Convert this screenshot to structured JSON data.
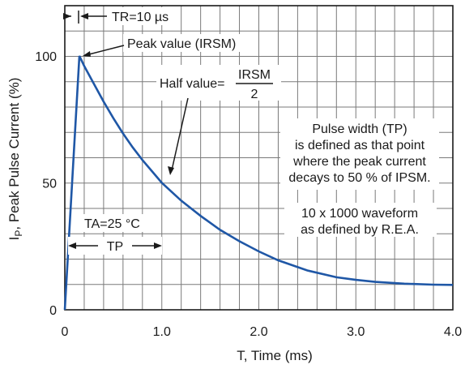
{
  "chart_data": {
    "type": "line",
    "xlabel": "T, Time (ms)",
    "ylabel_prefix": "I",
    "ylabel_sub": "P",
    "ylabel_suffix": ", Peak Pulse Current (%)",
    "xlim": [
      0,
      4.0
    ],
    "ylim": [
      0,
      110
    ],
    "x_ticks": [
      0,
      1.0,
      2.0,
      3.0,
      4.0
    ],
    "x_tick_labels": [
      "0",
      "1.0",
      "2.0",
      "3.0",
      "4.0"
    ],
    "y_ticks": [
      0,
      50,
      100
    ],
    "y_tick_labels": [
      "0",
      "50",
      "100"
    ],
    "grid": true,
    "series": [
      {
        "color": "#1f57a6",
        "x": [
          0,
          0.15,
          0.2,
          0.3,
          0.4,
          0.5,
          0.6,
          0.7,
          0.8,
          0.9,
          1.0,
          1.2,
          1.4,
          1.6,
          1.8,
          2.0,
          2.2,
          2.5,
          2.8,
          3.0,
          3.2,
          3.5,
          3.8,
          4.0
        ],
        "y": [
          0,
          100,
          96,
          89,
          82,
          75.5,
          69.5,
          64,
          59,
          54.5,
          50,
          43,
          37,
          31.5,
          27,
          23,
          19.5,
          15.5,
          12.8,
          11.8,
          11,
          10.3,
          9.9,
          9.8
        ]
      }
    ],
    "annotations": {
      "tr": "TR=10 µs",
      "peak": "Peak value (IRSM)",
      "half_prefix": "Half value=",
      "half_numerator": "IRSM",
      "half_denominator": "2",
      "ta": "TA=25 °C",
      "tp": "TP",
      "pulse_lines": [
        "Pulse width (TP)",
        "is defined as that point",
        "where the peak current",
        "decays to 50 % of IPSM."
      ],
      "waveform_lines": [
        "10 x 1000 waveform",
        "as defined by R.E.A."
      ]
    }
  }
}
